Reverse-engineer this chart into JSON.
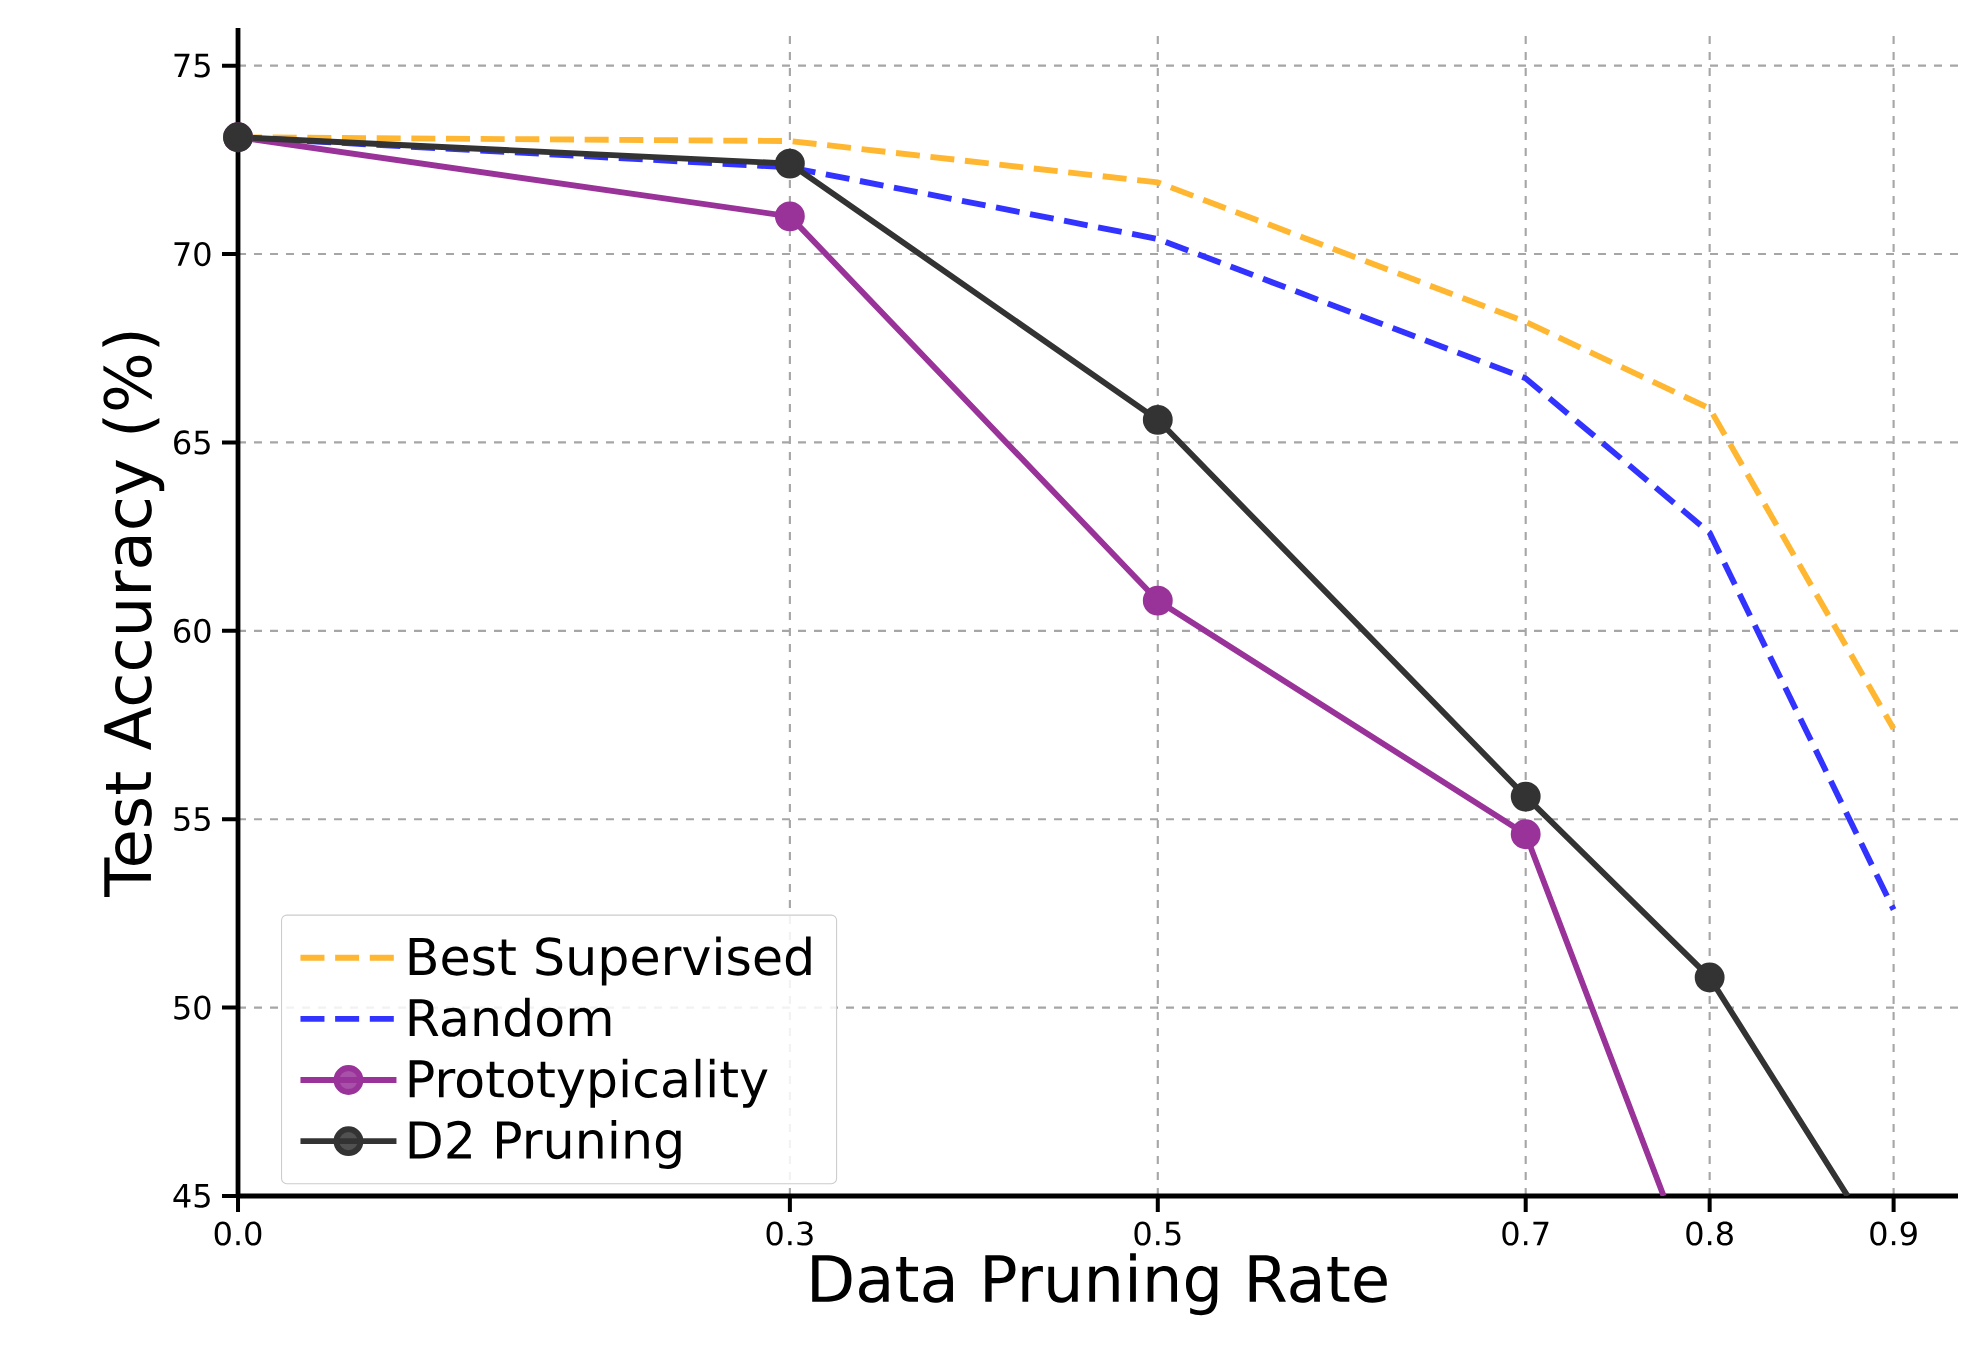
{
  "chart_data": {
    "type": "line",
    "xlabel": "Data Pruning Rate",
    "ylabel": "Test Accuracy (%)",
    "xlim": [
      0,
      0.935
    ],
    "ylim": [
      45,
      76
    ],
    "xticks": [
      {
        "value": 0,
        "label": "0.0"
      },
      0.3,
      0.5,
      0.7,
      0.8,
      0.9
    ],
    "yticks": [
      45,
      50,
      55,
      60,
      65,
      70,
      75
    ],
    "grid": true,
    "legend": "bottom left",
    "series": [
      {
        "name": "Best Supervised",
        "color": "#ffb732",
        "line_style": "dashed",
        "marker": "none",
        "x": [
          0,
          0.3,
          0.5,
          0.7,
          0.8,
          0.9
        ],
        "values": [
          73.1,
          73.0,
          71.9,
          68.2,
          65.9,
          57.4
        ]
      },
      {
        "name": "Random",
        "color": "#3333ff",
        "line_style": "dashed",
        "marker": "none",
        "x": [
          0,
          0.3,
          0.5,
          0.7,
          0.8,
          0.9
        ],
        "values": [
          73.1,
          72.3,
          70.4,
          66.7,
          62.6,
          52.6
        ]
      },
      {
        "name": "Prototypicality",
        "color": "#993399",
        "line_style": "solid",
        "marker": "circle",
        "x": [
          0,
          0.3,
          0.5,
          0.7,
          0.775
        ],
        "values": [
          73.1,
          71.0,
          60.8,
          54.6,
          45
        ]
      },
      {
        "name": "D2 Pruning",
        "color": "#333333",
        "line_style": "solid",
        "marker": "circle",
        "x": [
          0,
          0.3,
          0.5,
          0.7,
          0.8,
          0.875
        ],
        "values": [
          73.1,
          72.4,
          65.6,
          55.6,
          50.8,
          45
        ]
      }
    ]
  }
}
